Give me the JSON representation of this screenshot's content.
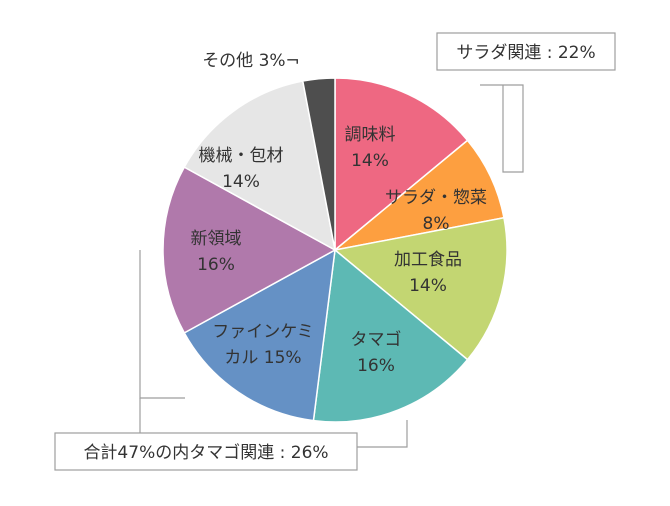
{
  "chart_data": {
    "type": "pie",
    "slices": [
      {
        "name": "調味料",
        "value_label": "14%",
        "value": 14,
        "color": "#ee6882"
      },
      {
        "name": "サラダ・惣菜",
        "value_label": "8%",
        "value": 8,
        "color": "#fd9f40"
      },
      {
        "name": "加工食品",
        "value_label": "14%",
        "value": 14,
        "color": "#c3d672"
      },
      {
        "name": "タマゴ",
        "value_label": "16%",
        "value": 16,
        "color": "#5db9b4"
      },
      {
        "name": "ファインケミカル",
        "label_lines": [
          "ファインケミ",
          "カル 15%"
        ],
        "value": 15,
        "color": "#6591c5"
      },
      {
        "name": "新領域",
        "value_label": "16%",
        "value": 16,
        "color": "#b079ab"
      },
      {
        "name": "機械・包材",
        "value_label": "14%",
        "value": 14,
        "color": "#e6e6e6"
      },
      {
        "name": "その他",
        "label_lines": [
          "その他 3%¬"
        ],
        "value": 3,
        "color": "#4e4e4e"
      }
    ],
    "callouts": [
      {
        "text": "サラダ関連 : 22%"
      },
      {
        "text": "合計47%の内タマゴ関連 : 26%"
      }
    ]
  }
}
